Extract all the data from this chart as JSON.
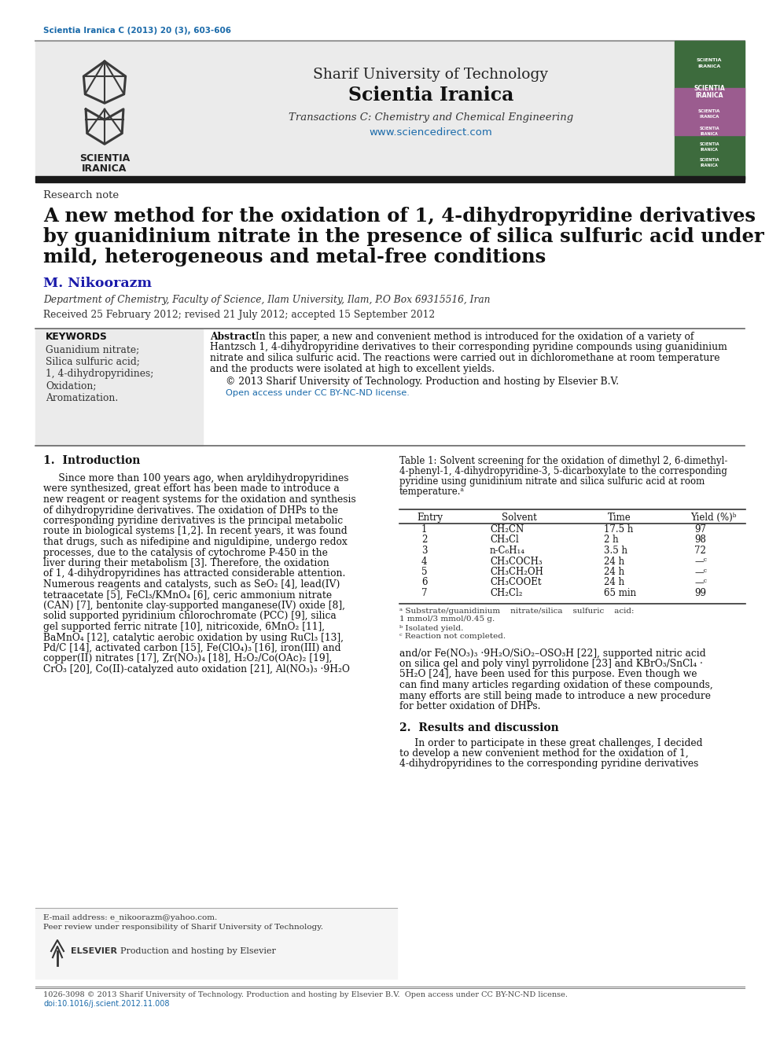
{
  "page_bg": "#ffffff",
  "journal_ref": "Scientia Iranica C (2013) 20 (3), 603-606",
  "journal_ref_color": "#1a6aaa",
  "university": "Sharif University of Technology",
  "journal_name": "Scientia Iranica",
  "transactions": "Transactions C: Chemistry and Chemical Engineering",
  "website": "www.sciencedirect.com",
  "website_color": "#1a6aaa",
  "article_type": "Research note",
  "title_line1": "A new method for the oxidation of 1, 4-dihydropyridine derivatives",
  "title_line2": "by guanidinium nitrate in the presence of silica sulfuric acid under",
  "title_line3": "mild, heterogeneous and metal-free conditions",
  "author": "M. Nikoorazm",
  "author_color": "#1a1aaa",
  "affiliation": "Department of Chemistry, Faculty of Science, Ilam University, Ilam, P.O Box 69315516, Iran",
  "received": "Received 25 February 2012; revised 21 July 2012; accepted 15 September 2012",
  "keywords_title": "KEYWORDS",
  "keywords": [
    "Guanidium nitrate;",
    "Silica sulfuric acid;",
    "1, 4-dihydropyridines;",
    "Oxidation;",
    "Aromatization."
  ],
  "abstract_line1": "Abstract  In this paper, a new and convenient method is introduced for the oxidation of a variety of",
  "abstract_line2": "Hantzsch 1, 4-dihydropyridine derivatives to their corresponding pyridine compounds using guanidinium",
  "abstract_line3": "nitrate and silica sulfuric acid. The reactions were carried out in dichloromethane at room temperature",
  "abstract_line4": "and the products were isolated at high to excellent yields.",
  "copyright": "© 2013 Sharif University of Technology. Production and hosting by Elsevier B.V.",
  "open_access": "Open access under CC BY-NC-ND license.",
  "open_access_color": "#1a6aaa",
  "intro_title": "1.  Introduction",
  "table_caption1": "Table 1: Solvent screening for the oxidation of dimethyl 2, 6-dimethyl-",
  "table_caption2": "4-phenyl-1, 4-dihydropyridine-3, 5-dicarboxylate to the corresponding",
  "table_caption3": "pyridine using gunidinium nitrate and silica sulfuric acid at room",
  "table_caption4": "temperature.ᵃ",
  "table_headers": [
    "Entry",
    "Solvent",
    "Time",
    "Yield (%)ᵇ"
  ],
  "table_data": [
    [
      "1",
      "CH₂CN",
      "17.5 h",
      "97"
    ],
    [
      "2",
      "CH₃Cl",
      "2 h",
      "98"
    ],
    [
      "3",
      "n-C₆H₁₄",
      "3.5 h",
      "72"
    ],
    [
      "4",
      "CH₃COCH₃",
      "24 h",
      "—ᶜ"
    ],
    [
      "5",
      "CH₃CH₂OH",
      "24 h",
      "—ᶜ"
    ],
    [
      "6",
      "CH₃COOEt",
      "24 h",
      "—ᶜ"
    ],
    [
      "7",
      "CH₂Cl₂",
      "65 min",
      "99"
    ]
  ],
  "table_fn1": "ᵃ Substrate/guanidinium    nitrate/silica    sulfuric    acid:",
  "table_fn2": "1 mmol/3 mmol/0.45 g.",
  "table_fn3": "ᵇ Isolated yield.",
  "table_fn4": "ᶜ Reaction not completed.",
  "footer_email": "E-mail address: e_nikoorazm@yahoo.com.",
  "footer_review": "Peer review under responsibility of Sharif University of Technology.",
  "footer_logo_text": "Production and hosting by Elsevier",
  "bottom_issn": "1026-3098 © 2013 Sharif University of Technology. Production and hosting by Elsevier B.V.  Open access under CC BY-NC-ND license.",
  "bottom_doi": "doi:10.1016/j.scient.2012.11.008",
  "bottom_doi_color": "#1a6aaa"
}
